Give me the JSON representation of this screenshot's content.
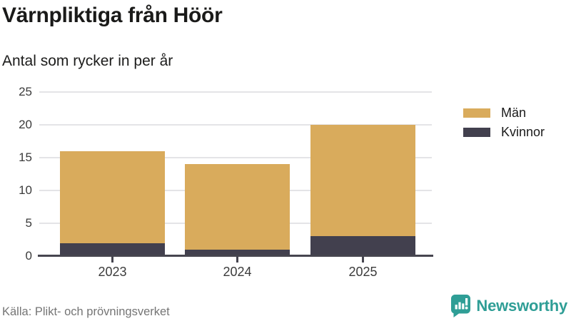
{
  "header": {
    "title": "Värnpliktiga från Höör",
    "subtitle": "Antal som rycker in per år"
  },
  "chart_data": {
    "type": "bar",
    "stacked": true,
    "title": "Värnpliktiga från Höör",
    "subtitle": "Antal som rycker in per år",
    "categories": [
      "2023",
      "2024",
      "2025"
    ],
    "series": [
      {
        "name": "Män",
        "color": "#d9ab5c",
        "values": [
          14,
          13,
          17
        ]
      },
      {
        "name": "Kvinnor",
        "color": "#42404e",
        "values": [
          2,
          1,
          3
        ]
      }
    ],
    "stack_totals": [
      16,
      14,
      20
    ],
    "ylim": [
      0,
      25
    ],
    "yticks": [
      0,
      5,
      10,
      15,
      20,
      25
    ],
    "grid": true,
    "legend_position": "right",
    "source": "Källa: Plikt- och prövningsverket"
  },
  "legend": {
    "items": [
      {
        "label": "Män",
        "color": "#d9ab5c"
      },
      {
        "label": "Kvinnor",
        "color": "#42404e"
      }
    ]
  },
  "footer": {
    "source": "Källa: Plikt- och prövningsverket",
    "brand": "Newsworthy"
  },
  "colors": {
    "men": "#d9ab5c",
    "women": "#42404e",
    "brand_teal": "#2f9e96",
    "gridline": "#e4e4e7",
    "axis": "#46454f",
    "source_text": "#757575"
  }
}
